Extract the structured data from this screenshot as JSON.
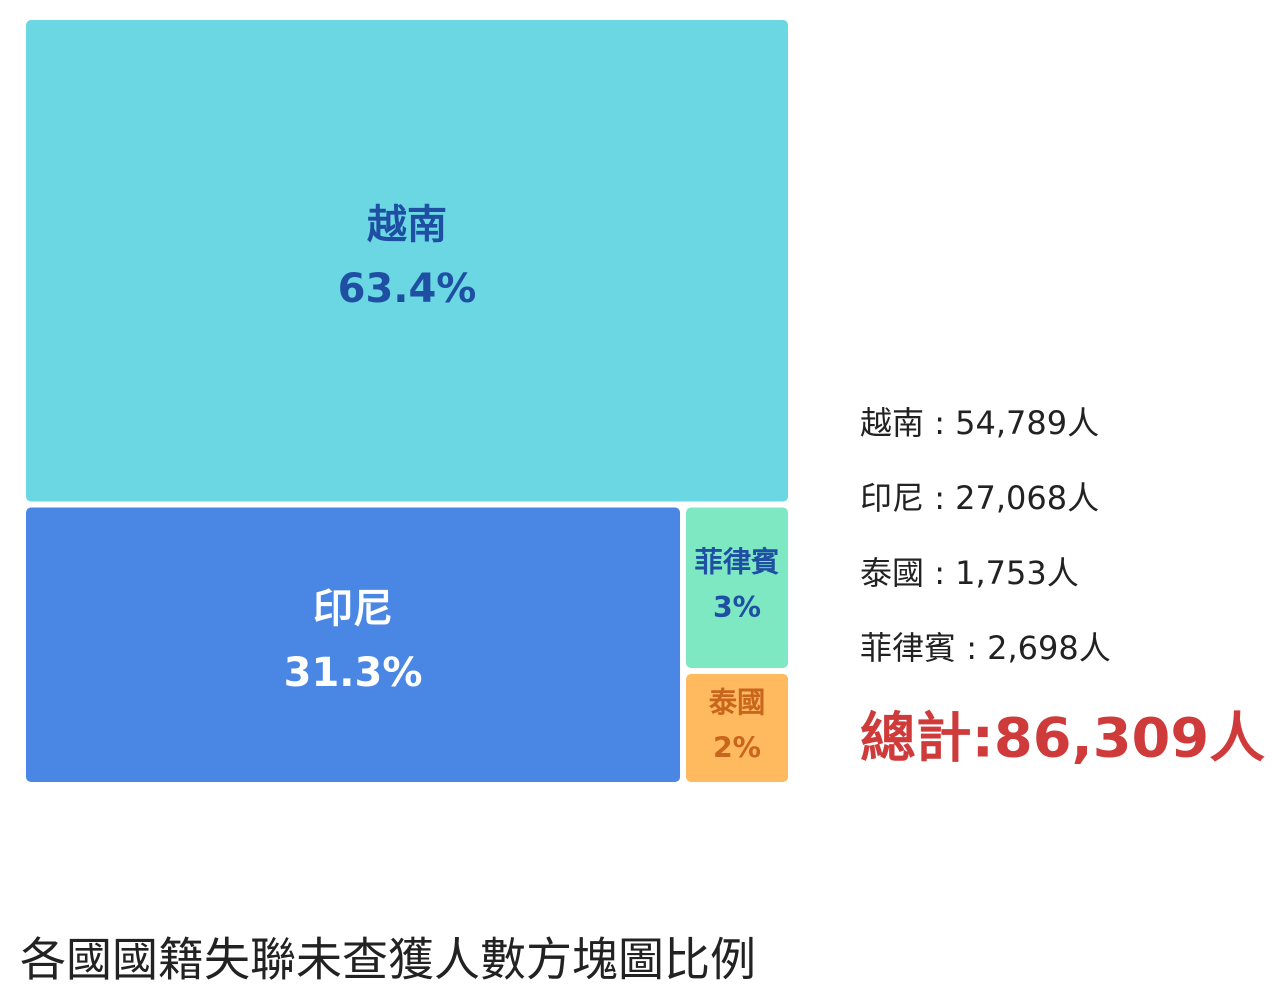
{
  "chart_data": {
    "type": "treemap",
    "title": "各國國籍失聯未查獲人數方塊圖比例",
    "categories": [
      "越南",
      "印尼",
      "菲律賓",
      "泰國"
    ],
    "values": [
      63.4,
      31.3,
      3,
      2
    ],
    "value_labels": [
      "63.4%",
      "31.3%",
      "3%",
      "2%"
    ],
    "colors": [
      "#6ad7e3",
      "#4a86e4",
      "#7de8c2",
      "#ffb95e"
    ],
    "label_colors": [
      "#1f4fa3",
      "#ffffff",
      "#1f4fa3",
      "#c8661e"
    ],
    "legend": [
      {
        "name": "越南",
        "count": 54789,
        "label": " : 54,789人"
      },
      {
        "name": "印尼",
        "count": 27068,
        "label": " : 27,068人"
      },
      {
        "name": "泰國",
        "count": 1753,
        "label": " : 1,753人"
      },
      {
        "name": "菲律賓",
        "count": 2698,
        "label": " : 2,698人"
      }
    ],
    "total": 86309,
    "total_label": "總計:86,309人"
  }
}
